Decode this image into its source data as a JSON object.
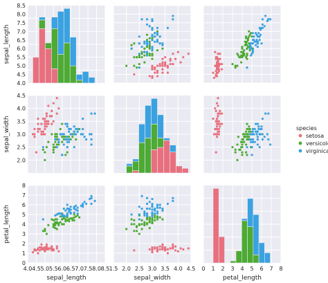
{
  "chart_data": {
    "type": "scatter",
    "kind": "pairplot",
    "variables": [
      "sepal_length",
      "sepal_width",
      "petal_length"
    ],
    "legend": {
      "title": "species",
      "placement": "right",
      "entries": [
        {
          "label": "setosa",
          "color": "#e8707e"
        },
        {
          "label": "versicolor",
          "color": "#4daa33"
        },
        {
          "label": "virginica",
          "color": "#3aa2e0"
        }
      ]
    },
    "grid": true,
    "background": "#eaeaf2",
    "axes": {
      "sepal_length": {
        "lim": [
          4.0,
          8.5
        ],
        "ticks": [
          "4.0",
          "4.5",
          "5.0",
          "5.5",
          "6.0",
          "6.5",
          "7.0",
          "7.5",
          "8.0",
          "8.5"
        ],
        "xticks": [
          "4.0",
          "4.5",
          "5.0",
          "5.5",
          "6.0",
          "6.5",
          "7.0",
          "7.5",
          "8.0",
          "8.5"
        ],
        "label": "sepal_length"
      },
      "sepal_width": {
        "lim": [
          1.5,
          4.5
        ],
        "ticks": [
          "2.0",
          "2.5",
          "3.0",
          "3.5",
          "4.0",
          "4.5"
        ],
        "xticks": [
          "1.5",
          "2.0",
          "2.5",
          "3.0",
          "3.5",
          "4.0",
          "4.5"
        ],
        "label": "sepal_width"
      },
      "petal_length": {
        "lim": [
          0,
          8
        ],
        "ticks": [
          "0",
          "1",
          "2",
          "3",
          "4",
          "5",
          "6",
          "7",
          "8"
        ],
        "xticks": [
          "0",
          "1",
          "2",
          "3",
          "4",
          "5",
          "6",
          "7",
          "8"
        ],
        "label": "petal_length"
      }
    },
    "histograms": {
      "sepal_length": {
        "edges": [
          4.3,
          4.66,
          5.02,
          5.38,
          5.74,
          6.1,
          6.46,
          6.82,
          7.18,
          7.54,
          7.9
        ],
        "counts": {
          "setosa": [
            9,
            19,
            12,
            5,
            0,
            0,
            0,
            0,
            0,
            0
          ],
          "versicolor": [
            0,
            3,
            2,
            14,
            10,
            14,
            6,
            1,
            0,
            0
          ],
          "virginica": [
            0,
            1,
            0,
            4,
            15,
            12,
            10,
            2,
            4,
            2
          ]
        }
      },
      "sepal_width": {
        "edges": [
          2.0,
          2.24,
          2.48,
          2.72,
          2.96,
          3.2,
          3.44,
          3.68,
          3.92,
          4.16,
          4.4
        ],
        "counts": {
          "setosa": [
            0,
            1,
            0,
            0,
            10,
            11,
            14,
            9,
            3,
            2
          ],
          "versicolor": [
            3,
            4,
            13,
            15,
            11,
            4,
            0,
            0,
            0,
            0
          ],
          "virginica": [
            1,
            1,
            8,
            14,
            11,
            10,
            1,
            3,
            0,
            0
          ]
        }
      },
      "petal_length": {
        "edges": [
          1.0,
          1.59,
          2.18,
          2.77,
          3.36,
          3.95,
          4.54,
          5.13,
          5.72,
          6.31,
          6.9
        ],
        "counts": {
          "setosa": [
            37,
            13,
            0,
            0,
            0,
            0,
            0,
            0,
            0,
            0
          ],
          "versicolor": [
            0,
            0,
            0,
            1,
            6,
            21,
            18,
            4,
            0,
            0
          ],
          "virginica": [
            0,
            0,
            0,
            0,
            0,
            1,
            14,
            20,
            10,
            5
          ]
        }
      }
    },
    "samples": {
      "setosa": [
        [
          5.1,
          3.5,
          1.4
        ],
        [
          4.9,
          3.0,
          1.4
        ],
        [
          4.7,
          3.2,
          1.3
        ],
        [
          4.6,
          3.1,
          1.5
        ],
        [
          5.0,
          3.6,
          1.4
        ],
        [
          5.4,
          3.9,
          1.7
        ],
        [
          4.6,
          3.4,
          1.4
        ],
        [
          5.0,
          3.4,
          1.5
        ],
        [
          4.4,
          2.9,
          1.4
        ],
        [
          4.9,
          3.1,
          1.5
        ],
        [
          5.4,
          3.7,
          1.5
        ],
        [
          4.8,
          3.4,
          1.6
        ],
        [
          4.8,
          3.0,
          1.4
        ],
        [
          4.3,
          3.0,
          1.1
        ],
        [
          5.8,
          4.0,
          1.2
        ],
        [
          5.7,
          4.4,
          1.5
        ],
        [
          5.4,
          3.9,
          1.3
        ],
        [
          5.1,
          3.5,
          1.4
        ],
        [
          5.7,
          3.8,
          1.7
        ],
        [
          5.1,
          3.8,
          1.5
        ],
        [
          5.4,
          3.4,
          1.7
        ],
        [
          5.1,
          3.7,
          1.5
        ],
        [
          4.6,
          3.6,
          1.0
        ],
        [
          5.1,
          3.3,
          1.7
        ],
        [
          4.8,
          3.4,
          1.9
        ],
        [
          5.0,
          3.0,
          1.6
        ],
        [
          5.0,
          3.4,
          1.6
        ],
        [
          5.2,
          3.5,
          1.5
        ],
        [
          5.2,
          3.4,
          1.4
        ],
        [
          4.7,
          3.2,
          1.6
        ],
        [
          4.8,
          3.1,
          1.6
        ],
        [
          5.4,
          3.4,
          1.5
        ],
        [
          5.2,
          4.1,
          1.5
        ],
        [
          5.5,
          4.2,
          1.4
        ],
        [
          4.9,
          3.1,
          1.5
        ],
        [
          5.0,
          3.2,
          1.2
        ],
        [
          5.5,
          3.5,
          1.3
        ],
        [
          4.9,
          3.6,
          1.4
        ],
        [
          4.4,
          3.0,
          1.3
        ],
        [
          5.1,
          3.4,
          1.5
        ],
        [
          5.0,
          3.5,
          1.3
        ],
        [
          4.5,
          2.3,
          1.3
        ],
        [
          4.4,
          3.2,
          1.3
        ],
        [
          5.0,
          3.5,
          1.6
        ],
        [
          5.1,
          3.8,
          1.9
        ],
        [
          4.8,
          3.0,
          1.4
        ],
        [
          5.1,
          3.8,
          1.6
        ],
        [
          4.6,
          3.2,
          1.4
        ],
        [
          5.3,
          3.7,
          1.5
        ],
        [
          5.0,
          3.3,
          1.4
        ]
      ],
      "versicolor": [
        [
          7.0,
          3.2,
          4.7
        ],
        [
          6.4,
          3.2,
          4.5
        ],
        [
          6.9,
          3.1,
          4.9
        ],
        [
          5.5,
          2.3,
          4.0
        ],
        [
          6.5,
          2.8,
          4.6
        ],
        [
          5.7,
          2.8,
          4.5
        ],
        [
          6.3,
          3.3,
          4.7
        ],
        [
          4.9,
          2.4,
          3.3
        ],
        [
          6.6,
          2.9,
          4.6
        ],
        [
          5.2,
          2.7,
          3.9
        ],
        [
          5.0,
          2.0,
          3.5
        ],
        [
          5.9,
          3.0,
          4.2
        ],
        [
          6.0,
          2.2,
          4.0
        ],
        [
          6.1,
          2.9,
          4.7
        ],
        [
          5.6,
          2.9,
          3.6
        ],
        [
          6.7,
          3.1,
          4.4
        ],
        [
          5.6,
          3.0,
          4.5
        ],
        [
          5.8,
          2.7,
          4.1
        ],
        [
          6.2,
          2.2,
          4.5
        ],
        [
          5.6,
          2.5,
          3.9
        ],
        [
          5.9,
          3.2,
          4.8
        ],
        [
          6.1,
          2.8,
          4.0
        ],
        [
          6.3,
          2.5,
          4.9
        ],
        [
          6.1,
          2.8,
          4.7
        ],
        [
          6.4,
          2.9,
          4.3
        ],
        [
          6.6,
          3.0,
          4.4
        ],
        [
          6.8,
          2.8,
          4.8
        ],
        [
          6.7,
          3.0,
          5.0
        ],
        [
          6.0,
          2.9,
          4.5
        ],
        [
          5.7,
          2.6,
          3.5
        ],
        [
          5.5,
          2.4,
          3.8
        ],
        [
          5.5,
          2.4,
          3.7
        ],
        [
          5.8,
          2.7,
          3.9
        ],
        [
          6.0,
          2.7,
          5.1
        ],
        [
          5.4,
          3.0,
          4.5
        ],
        [
          6.0,
          3.4,
          4.5
        ],
        [
          6.7,
          3.1,
          4.7
        ],
        [
          6.3,
          2.3,
          4.4
        ],
        [
          5.6,
          3.0,
          4.1
        ],
        [
          5.5,
          2.5,
          4.0
        ],
        [
          5.5,
          2.6,
          4.4
        ],
        [
          6.1,
          3.0,
          4.6
        ],
        [
          5.8,
          2.6,
          4.0
        ],
        [
          5.0,
          2.3,
          3.3
        ],
        [
          5.6,
          2.7,
          4.2
        ],
        [
          5.7,
          3.0,
          4.2
        ],
        [
          5.7,
          2.9,
          4.2
        ],
        [
          6.2,
          2.9,
          4.3
        ],
        [
          5.1,
          2.5,
          3.0
        ],
        [
          5.7,
          2.8,
          4.1
        ]
      ],
      "virginica": [
        [
          6.3,
          3.3,
          6.0
        ],
        [
          5.8,
          2.7,
          5.1
        ],
        [
          7.1,
          3.0,
          5.9
        ],
        [
          6.3,
          2.9,
          5.6
        ],
        [
          6.5,
          3.0,
          5.8
        ],
        [
          7.6,
          3.0,
          6.6
        ],
        [
          4.9,
          2.5,
          4.5
        ],
        [
          7.3,
          2.9,
          6.3
        ],
        [
          6.7,
          2.5,
          5.8
        ],
        [
          7.2,
          3.6,
          6.1
        ],
        [
          6.5,
          3.2,
          5.1
        ],
        [
          6.4,
          2.7,
          5.3
        ],
        [
          6.8,
          3.0,
          5.5
        ],
        [
          5.7,
          2.5,
          5.0
        ],
        [
          5.8,
          2.8,
          5.1
        ],
        [
          6.4,
          3.2,
          5.3
        ],
        [
          6.5,
          3.0,
          5.5
        ],
        [
          7.7,
          3.8,
          6.7
        ],
        [
          7.7,
          2.6,
          6.9
        ],
        [
          6.0,
          2.2,
          5.0
        ],
        [
          6.9,
          3.2,
          5.7
        ],
        [
          5.6,
          2.8,
          4.9
        ],
        [
          7.7,
          2.8,
          6.7
        ],
        [
          6.3,
          2.7,
          4.9
        ],
        [
          6.7,
          3.3,
          5.7
        ],
        [
          7.2,
          3.2,
          6.0
        ],
        [
          6.2,
          2.8,
          4.8
        ],
        [
          6.1,
          3.0,
          4.9
        ],
        [
          6.4,
          2.8,
          5.6
        ],
        [
          7.2,
          3.0,
          5.8
        ],
        [
          7.4,
          2.8,
          6.1
        ],
        [
          7.9,
          3.8,
          6.4
        ],
        [
          6.4,
          2.8,
          5.6
        ],
        [
          6.3,
          2.8,
          5.1
        ],
        [
          6.1,
          2.6,
          5.6
        ],
        [
          7.7,
          3.0,
          6.1
        ],
        [
          6.3,
          3.4,
          5.6
        ],
        [
          6.4,
          3.1,
          5.5
        ],
        [
          6.0,
          3.0,
          4.8
        ],
        [
          6.9,
          3.1,
          5.4
        ],
        [
          6.7,
          3.1,
          5.6
        ],
        [
          6.9,
          3.1,
          5.1
        ],
        [
          5.8,
          2.7,
          5.1
        ],
        [
          6.8,
          3.2,
          5.9
        ],
        [
          6.7,
          3.3,
          5.7
        ],
        [
          6.7,
          3.0,
          5.2
        ],
        [
          6.3,
          2.5,
          5.0
        ],
        [
          6.5,
          3.0,
          5.2
        ],
        [
          6.2,
          3.4,
          5.4
        ],
        [
          5.9,
          3.0,
          5.1
        ]
      ]
    }
  }
}
